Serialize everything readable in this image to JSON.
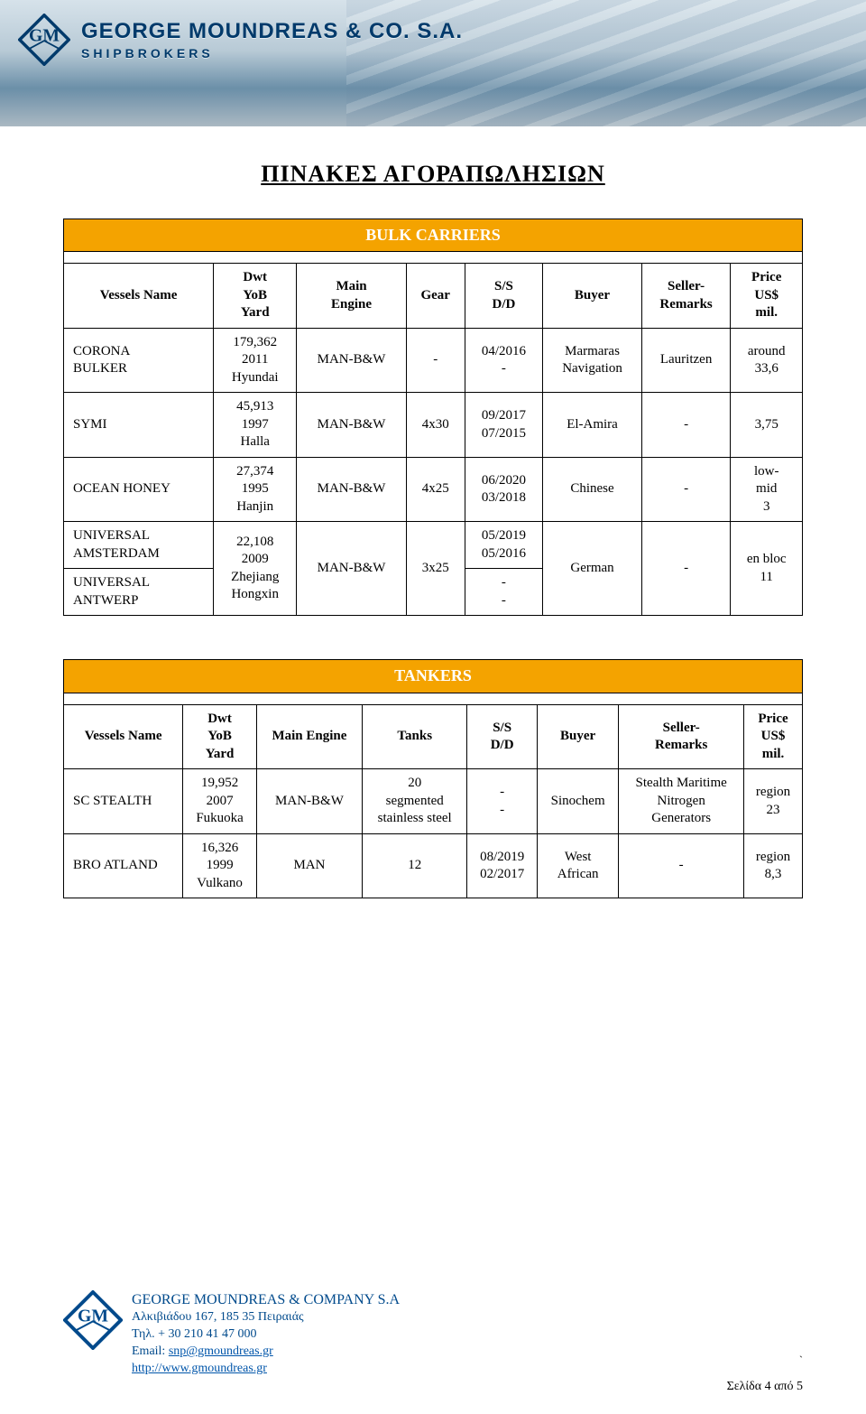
{
  "banner": {
    "company_line1": "GEORGE MOUNDREAS & CO. S.A.",
    "company_line2": "SHIPBROKERS"
  },
  "page_title": "ΠΙΝΑΚΕΣ ΑΓΟΡΑΠΩΛΗΣΙΩΝ",
  "bulk": {
    "section_label": "BULK CARRIERS",
    "headers": [
      "Vessels Name",
      "Dwt\nYoB\nYard",
      "Main\nEngine",
      "Gear",
      "S/S\nD/D",
      "Buyer",
      "Seller-\nRemarks",
      "Price\nUS$\nmil."
    ],
    "rows": [
      {
        "vessel": "CORONA\nBULKER",
        "dwt": "179,362\n2011\nHyundai",
        "engine": "MAN-B&W",
        "gear": "-",
        "ssdd": "04/2016\n-",
        "buyer": "Marmaras\nNavigation",
        "seller": "Lauritzen",
        "price": "around\n33,6"
      },
      {
        "vessel": "SYMI",
        "dwt": "45,913\n1997\nHalla",
        "engine": "MAN-B&W",
        "gear": "4x30",
        "ssdd": "09/2017\n07/2015",
        "buyer": "El-Amira",
        "seller": "-",
        "price": "3,75"
      },
      {
        "vessel": "OCEAN HONEY",
        "dwt": "27,374\n1995\nHanjin",
        "engine": "MAN-B&W",
        "gear": "4x25",
        "ssdd": "06/2020\n03/2018",
        "buyer": "Chinese",
        "seller": "-",
        "price": "low-\nmid\n3"
      }
    ],
    "grouped": {
      "vessels": [
        "UNIVERSAL\nAMSTERDAM",
        "UNIVERSAL\nANTWERP"
      ],
      "ssdd": [
        "05/2019\n05/2016",
        "-\n-"
      ],
      "dwt": "22,108\n2009\nZhejiang\nHongxin",
      "engine": "MAN-B&W",
      "gear": "3x25",
      "buyer": "German",
      "seller": "-",
      "price": "en bloc\n11"
    }
  },
  "tankers": {
    "section_label": "TANKERS",
    "headers": [
      "Vessels Name",
      "Dwt\nYoB\nYard",
      "Main Engine",
      "Tanks",
      "S/S\nD/D",
      "Buyer",
      "Seller-\nRemarks",
      "Price\nUS$\nmil."
    ],
    "rows": [
      {
        "vessel": "SC STEALTH",
        "dwt": "19,952\n2007\nFukuoka",
        "engine": "MAN-B&W",
        "tanks": "20\nsegmented\nstainless steel",
        "ssdd": "-\n-",
        "buyer": "Sinochem",
        "seller": "Stealth Maritime\nNitrogen\nGenerators",
        "price": "region\n23"
      },
      {
        "vessel": "BRO  ATLAND",
        "dwt": "16,326\n1999\nVulkano",
        "engine": "MAN",
        "tanks": "12",
        "ssdd": "08/2019\n02/2017",
        "buyer": "West\nAfrican",
        "seller": "-",
        "price": "region\n8,3"
      }
    ]
  },
  "footer": {
    "company": "GEORGE MOUNDREAS & COMPANY S.A",
    "address": "Αλκιβιάδου 167, 185 35 Πειραιάς",
    "tel": "Τηλ. + 30 210 41 47 000",
    "email_label": "Email: ",
    "email": "snp@gmoundreas.gr",
    "site": "http://www.gmoundreas.gr",
    "page": "Σελίδα 4 από 5",
    "tick": "`"
  },
  "colors": {
    "section_bg": "#f4a300",
    "section_fg": "#ffffff",
    "border": "#000000",
    "footer_text": "#004a8c",
    "link": "#0055aa"
  }
}
